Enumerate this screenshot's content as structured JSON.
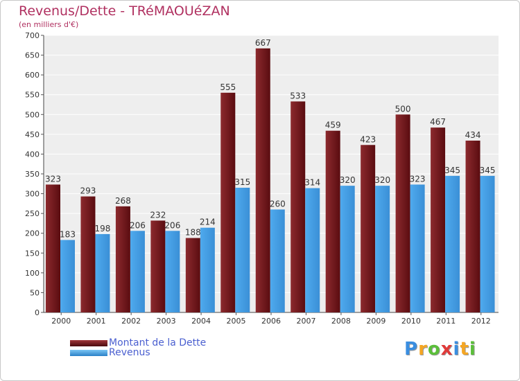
{
  "chart_data": {
    "type": "bar",
    "title": "Revenus/Dette - TRéMAOUéZAN",
    "subtitle": "(en milliers d'€)",
    "categories": [
      "2000",
      "2001",
      "2002",
      "2003",
      "2004",
      "2005",
      "2006",
      "2007",
      "2008",
      "2009",
      "2010",
      "2011",
      "2012"
    ],
    "series": [
      {
        "name": "Montant de la Dette",
        "color": "#7a1a1e",
        "values": [
          323,
          293,
          268,
          232,
          188,
          555,
          667,
          533,
          459,
          423,
          500,
          467,
          434
        ]
      },
      {
        "name": "Revenus",
        "color": "#3f9fe4",
        "values": [
          183,
          198,
          206,
          206,
          214,
          315,
          260,
          314,
          320,
          320,
          323,
          345,
          345
        ]
      }
    ],
    "ylim": [
      0,
      700
    ],
    "yticks": [
      0,
      50,
      100,
      150,
      200,
      250,
      300,
      350,
      400,
      450,
      500,
      550,
      600,
      650,
      700
    ],
    "grid": true,
    "legend_position": "bottom-left"
  },
  "logo": {
    "letters": [
      "P",
      "r",
      "o",
      "x",
      "i",
      "t",
      "i"
    ],
    "colors": [
      "#3a8ee0",
      "#f5a623",
      "#5bbf3a",
      "#e03a3a",
      "#3a8ee0",
      "#f5a623",
      "#5bbf3a"
    ]
  }
}
